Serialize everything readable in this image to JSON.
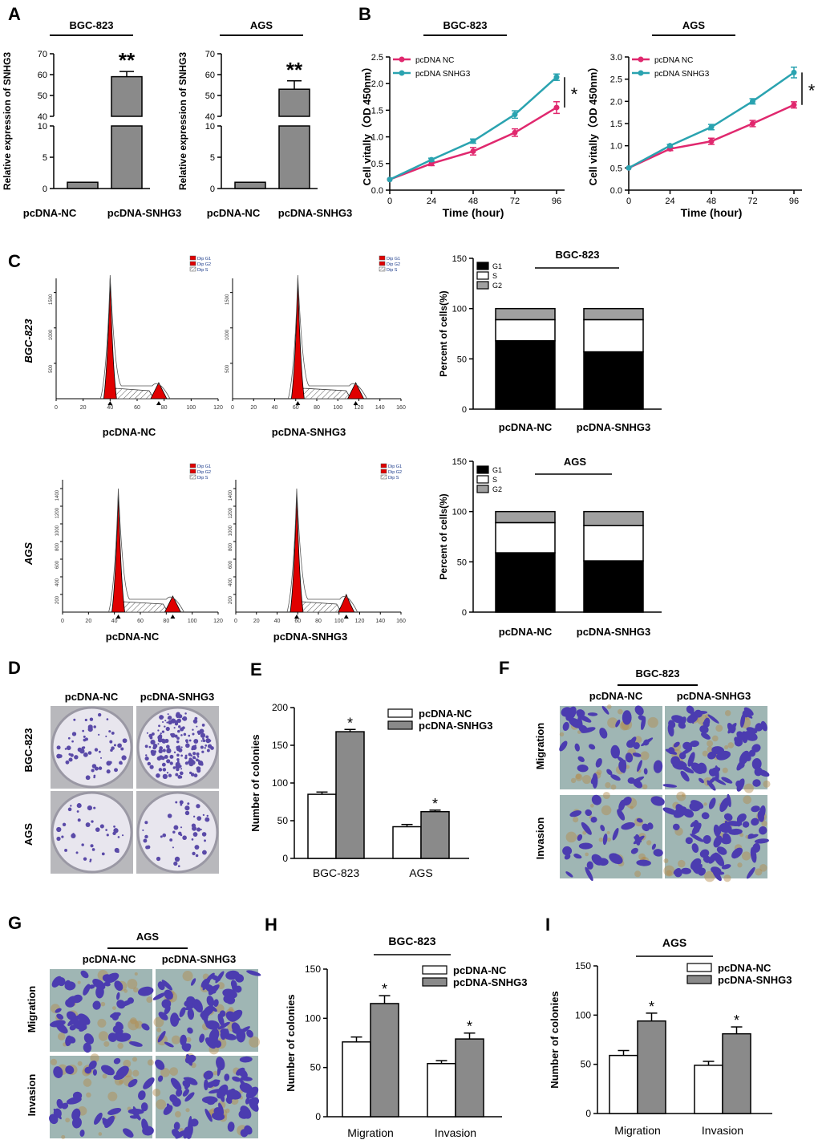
{
  "figure": {
    "panel_letters": [
      "A",
      "B",
      "C",
      "D",
      "E",
      "F",
      "G",
      "H",
      "I"
    ],
    "colors": {
      "red": "#e0286e",
      "teal": "#2aa3b0",
      "gray": "#8a8a8a",
      "hist": "#e00000",
      "purple": "#4b3cb0"
    }
  },
  "chart_data": [
    {
      "id": "A1",
      "type": "bar",
      "title": "BGC-823",
      "ylabel": "Relative expression of SNHG3",
      "categories": [
        "pcDNA-NC",
        "pcDNA-SNHG3"
      ],
      "values": [
        1,
        59
      ],
      "errors": [
        0,
        2.5
      ],
      "ylim_lower": [
        0,
        10
      ],
      "ylim_upper": [
        40,
        70
      ],
      "yticks_lower": [
        "0",
        "5",
        "10"
      ],
      "yticks_upper": [
        "40",
        "50",
        "60",
        "70"
      ],
      "annotations": [
        "",
        "**"
      ]
    },
    {
      "id": "A2",
      "type": "bar",
      "title": "AGS",
      "ylabel": "Relative expression of SNHG3",
      "categories": [
        "pcDNA-NC",
        "pcDNA-SNHG3"
      ],
      "values": [
        1,
        53
      ],
      "errors": [
        0,
        4
      ],
      "ylim_lower": [
        0,
        10
      ],
      "ylim_upper": [
        40,
        70
      ],
      "yticks_lower": [
        "0",
        "5",
        "10"
      ],
      "yticks_upper": [
        "40",
        "50",
        "60",
        "70"
      ],
      "annotations": [
        "",
        "**"
      ]
    },
    {
      "id": "B1",
      "type": "line",
      "title": "BGC-823",
      "xlabel": "Time (hour)",
      "ylabel": "Cell vitally（OD 450nm）",
      "x": [
        0,
        24,
        48,
        72,
        96
      ],
      "xticks": [
        "0",
        "24",
        "48",
        "72",
        "96"
      ],
      "yticks": [
        "0.0",
        "0.5",
        "1.0",
        "1.5",
        "2.0",
        "2.5"
      ],
      "ylim": [
        0,
        2.5
      ],
      "series": [
        {
          "name": "pcDNA NC",
          "values": [
            0.2,
            0.5,
            0.73,
            1.08,
            1.55
          ],
          "errors": [
            0,
            0.04,
            0.07,
            0.07,
            0.11
          ]
        },
        {
          "name": "pcDNA SNHG3",
          "values": [
            0.2,
            0.57,
            0.92,
            1.42,
            2.12
          ],
          "errors": [
            0,
            0.03,
            0.04,
            0.07,
            0.06
          ]
        }
      ],
      "annotation": "*"
    },
    {
      "id": "B2",
      "type": "line",
      "title": "AGS",
      "xlabel": "Time (hour)",
      "ylabel": "Cell vitally（OD 450nm）",
      "x": [
        0,
        24,
        48,
        72,
        96
      ],
      "xticks": [
        "0",
        "24",
        "48",
        "72",
        "96"
      ],
      "yticks": [
        "0.0",
        "0.5",
        "1.0",
        "1.5",
        "2.0",
        "2.5",
        "3.0"
      ],
      "ylim": [
        0,
        3
      ],
      "series": [
        {
          "name": "pcDNA NC",
          "values": [
            0.5,
            0.93,
            1.1,
            1.5,
            1.92
          ],
          "errors": [
            0,
            0.04,
            0.07,
            0.07,
            0.07
          ]
        },
        {
          "name": "pcDNA SNHG3",
          "values": [
            0.5,
            1.0,
            1.42,
            2.0,
            2.65
          ],
          "errors": [
            0,
            0.03,
            0.06,
            0.06,
            0.12
          ]
        }
      ],
      "annotation": "*"
    },
    {
      "id": "C1",
      "type": "histogram",
      "row_label": "BGC-823",
      "panels": [
        {
          "label": "pcDNA-NC",
          "xticks": [
            "0",
            "20",
            "40",
            "60",
            "80",
            "100",
            "120"
          ],
          "yticks": [
            "500",
            "1000",
            "1500"
          ],
          "legend": [
            "Dip G1",
            "Dip G2",
            "Dip S"
          ],
          "g1_channel": 40,
          "g2_channel": 76
        },
        {
          "label": "pcDNA-SNHG3",
          "xticks": [
            "0",
            "20",
            "40",
            "60",
            "80",
            "100",
            "120",
            "140",
            "160"
          ],
          "yticks": [
            "500",
            "1000",
            "1500"
          ],
          "legend": [
            "Dip G1",
            "Dip G2",
            "Dip S"
          ],
          "g1_channel": 62,
          "g2_channel": 117
        }
      ]
    },
    {
      "id": "C2",
      "type": "histogram",
      "row_label": "AGS",
      "panels": [
        {
          "label": "pcDNA-NC",
          "xticks": [
            "0",
            "20",
            "40",
            "60",
            "80",
            "100",
            "120"
          ],
          "yticks": [
            "200",
            "400",
            "600",
            "800",
            "1000",
            "1200",
            "1400"
          ],
          "legend": [
            "Dip G1",
            "Dip G2",
            "Dip S"
          ],
          "g1_channel": 43,
          "g2_channel": 85
        },
        {
          "label": "pcDNA-SNHG3",
          "xticks": [
            "0",
            "20",
            "40",
            "60",
            "80",
            "100",
            "120",
            "140",
            "160"
          ],
          "yticks": [
            "200",
            "400",
            "600",
            "800",
            "1000",
            "1200",
            "1400"
          ],
          "legend": [
            "Dip G1",
            "Dip G2",
            "Dip S"
          ],
          "g1_channel": 59,
          "g2_channel": 107
        }
      ]
    },
    {
      "id": "C3",
      "type": "bar",
      "stacked": true,
      "title": "BGC-823",
      "ylabel": "Percent of cells(%)",
      "categories": [
        "pcDNA-NC",
        "pcDNA-SNHG3"
      ],
      "series": [
        {
          "name": "G1",
          "values": [
            68,
            57
          ]
        },
        {
          "name": "S",
          "values": [
            21,
            32
          ]
        },
        {
          "name": "G2",
          "values": [
            11,
            11
          ]
        }
      ],
      "ylim": [
        0,
        150
      ],
      "yticks": [
        "0",
        "50",
        "100",
        "150"
      ]
    },
    {
      "id": "C4",
      "type": "bar",
      "stacked": true,
      "title": "AGS",
      "ylabel": "Percent of cells(%)",
      "categories": [
        "pcDNA-NC",
        "pcDNA-SNHG3"
      ],
      "series": [
        {
          "name": "G1",
          "values": [
            59,
            51
          ]
        },
        {
          "name": "S",
          "values": [
            30,
            35
          ]
        },
        {
          "name": "G2",
          "values": [
            11,
            14
          ]
        }
      ],
      "ylim": [
        0,
        150
      ],
      "yticks": [
        "0",
        "50",
        "100",
        "150"
      ]
    },
    {
      "id": "E",
      "type": "bar",
      "ylabel": "Number of colonies",
      "categories": [
        "BGC-823",
        "AGS"
      ],
      "series": [
        {
          "name": "pcDNA-NC",
          "values": [
            85,
            42
          ],
          "errors": [
            3,
            3
          ]
        },
        {
          "name": "pcDNA-SNHG3",
          "values": [
            168,
            62
          ],
          "errors": [
            3,
            2
          ]
        }
      ],
      "ylim": [
        0,
        200
      ],
      "yticks": [
        "0",
        "50",
        "100",
        "150",
        "200"
      ],
      "annotations": [
        "*",
        "*"
      ]
    },
    {
      "id": "H",
      "type": "bar",
      "title": "BGC-823",
      "ylabel": "Number of colonies",
      "categories": [
        "Migration",
        "Invasion"
      ],
      "series": [
        {
          "name": "pcDNA-NC",
          "values": [
            76,
            54
          ],
          "errors": [
            5,
            3
          ]
        },
        {
          "name": "pcDNA-SNHG3",
          "values": [
            115,
            79
          ],
          "errors": [
            8,
            6
          ]
        }
      ],
      "ylim": [
        0,
        150
      ],
      "yticks": [
        "0",
        "50",
        "100",
        "150"
      ],
      "annotations": [
        "*",
        "*"
      ]
    },
    {
      "id": "I",
      "type": "bar",
      "title": "AGS",
      "ylabel": "Number of colonies",
      "categories": [
        "Migration",
        "Invasion"
      ],
      "series": [
        {
          "name": "pcDNA-NC",
          "values": [
            59,
            49
          ],
          "errors": [
            5,
            4
          ]
        },
        {
          "name": "pcDNA-SNHG3",
          "values": [
            94,
            81
          ],
          "errors": [
            8,
            7
          ]
        }
      ],
      "ylim": [
        0,
        150
      ],
      "yticks": [
        "0",
        "50",
        "100",
        "150"
      ],
      "annotations": [
        "*",
        "*"
      ]
    }
  ],
  "photos": {
    "D": {
      "cols": [
        "pcDNA-NC",
        "pcDNA-SNHG3"
      ],
      "rows": [
        "BGC-823",
        "AGS"
      ]
    },
    "F": {
      "title": "BGC-823",
      "cols": [
        "pcDNA-NC",
        "pcDNA-SNHG3"
      ],
      "rows": [
        "Migration",
        "Invasion"
      ]
    },
    "G": {
      "title": "AGS",
      "cols": [
        "pcDNA-NC",
        "pcDNA-SNHG3"
      ],
      "rows": [
        "Migration",
        "Invasion"
      ]
    }
  }
}
